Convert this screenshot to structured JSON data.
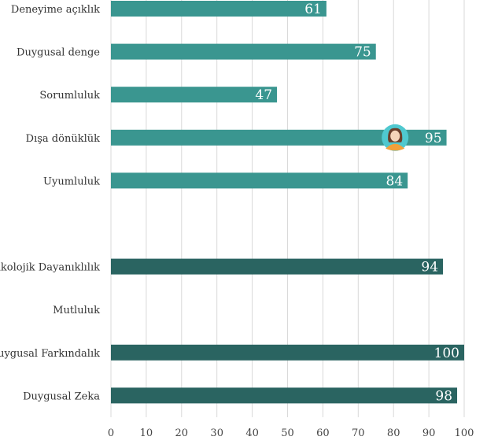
{
  "chart_data": {
    "type": "bar",
    "orientation": "horizontal",
    "xlim": [
      0,
      100
    ],
    "x_ticks": [
      "0",
      "10",
      "20",
      "30",
      "40",
      "50",
      "60",
      "70",
      "80",
      "90",
      "100"
    ],
    "grid": true,
    "colors": {
      "personality": "#3a9690",
      "emotional": "#2a6461",
      "bar_label": "#ffffff"
    },
    "categories": [
      "Deneyime açıklık",
      "Duygusal denge",
      "Sorumluluk",
      "Dışa dönüklük",
      "Uyumluluk",
      "",
      "Psikolojik Dayanıklılık",
      "Mutluluk",
      "Duygusal Farkındalık",
      "Duygusal Zeka"
    ],
    "values": [
      61,
      75,
      47,
      95,
      84,
      null,
      94,
      null,
      100,
      98
    ],
    "value_labels": [
      "61",
      "75",
      "47",
      "95",
      "84",
      "",
      "94",
      "",
      "100",
      "98"
    ],
    "groups": [
      "personality",
      "personality",
      "personality",
      "personality",
      "personality",
      "",
      "emotional",
      "emotional",
      "emotional",
      "emotional"
    ],
    "marker": {
      "category_index": 3,
      "x_value": 80,
      "icon": "user-avatar-icon"
    }
  }
}
